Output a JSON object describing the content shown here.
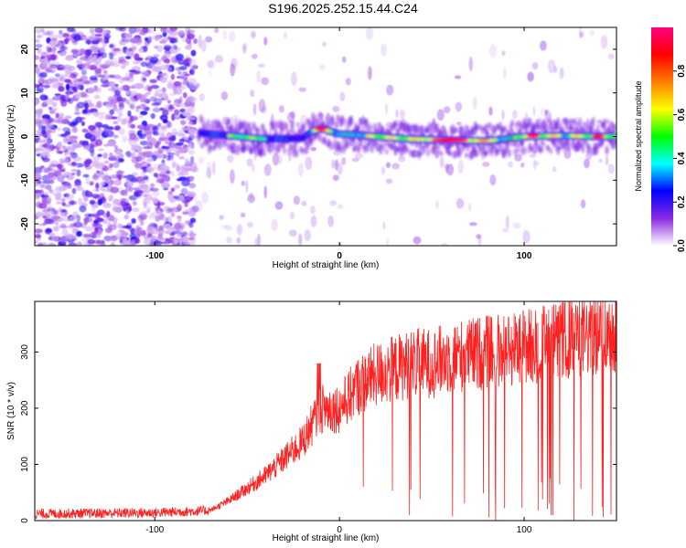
{
  "title": "S196.2025.252.15.44.C24",
  "chart_data": [
    {
      "type": "heatmap",
      "xlabel": "Height of straight line (km)",
      "ylabel": "Frequency (Hz)",
      "xlim": [
        -165,
        150
      ],
      "ylim": [
        -25,
        25
      ],
      "xticks": [
        -100,
        0,
        100
      ],
      "yticks": [
        -20,
        -10,
        0,
        10,
        20
      ],
      "colorbar": {
        "label": "Normalized spectral amplitude",
        "range": [
          0,
          1
        ],
        "ticks": [
          "0.0",
          "0.2",
          "0.4",
          "0.6",
          "0.8"
        ],
        "colors": [
          "#ffffff",
          "#8a2be2",
          "#0000ff",
          "#00ffff",
          "#00ff00",
          "#ffff00",
          "#ff8000",
          "#ff0000",
          "#ff0080"
        ]
      },
      "ridge": {
        "description_values": "dominant frequency track near 0 Hz",
        "x": [
          -75,
          -60,
          -40,
          -20,
          -15,
          -10,
          0,
          20,
          40,
          60,
          80,
          100,
          120,
          140,
          150
        ],
        "y": [
          0.8,
          0.2,
          -0.6,
          -0.4,
          1.2,
          1.8,
          0.6,
          0,
          -0.6,
          -0.8,
          -1,
          0,
          0.2,
          0,
          0
        ]
      },
      "hot_spots": [
        {
          "x": -10,
          "y": 1.8,
          "value": 0.9
        },
        {
          "x": 60,
          "y": -0.8,
          "value": 0.95
        },
        {
          "x": 105,
          "y": 0.2,
          "value": 0.95
        },
        {
          "x": 140,
          "y": 0,
          "value": 0.9
        }
      ]
    },
    {
      "type": "line",
      "xlabel": "Height of straight line (km)",
      "ylabel": "SNR (10 * v/v)",
      "xlim": [
        -165,
        150
      ],
      "ylim": [
        0,
        390
      ],
      "xticks": [
        -100,
        0,
        100
      ],
      "yticks": [
        0,
        100,
        200,
        300
      ],
      "color": "#ff2020",
      "series": [
        {
          "name": "SNR",
          "envelope_x": [
            -165,
            -100,
            -70,
            -60,
            -40,
            -20,
            -10,
            0,
            10,
            20,
            30,
            40,
            50,
            60,
            80,
            100,
            120,
            140,
            150
          ],
          "envelope_y": [
            12,
            14,
            18,
            35,
            80,
            140,
            200,
            200,
            240,
            260,
            270,
            280,
            280,
            290,
            300,
            310,
            320,
            330,
            340
          ]
        }
      ]
    }
  ]
}
